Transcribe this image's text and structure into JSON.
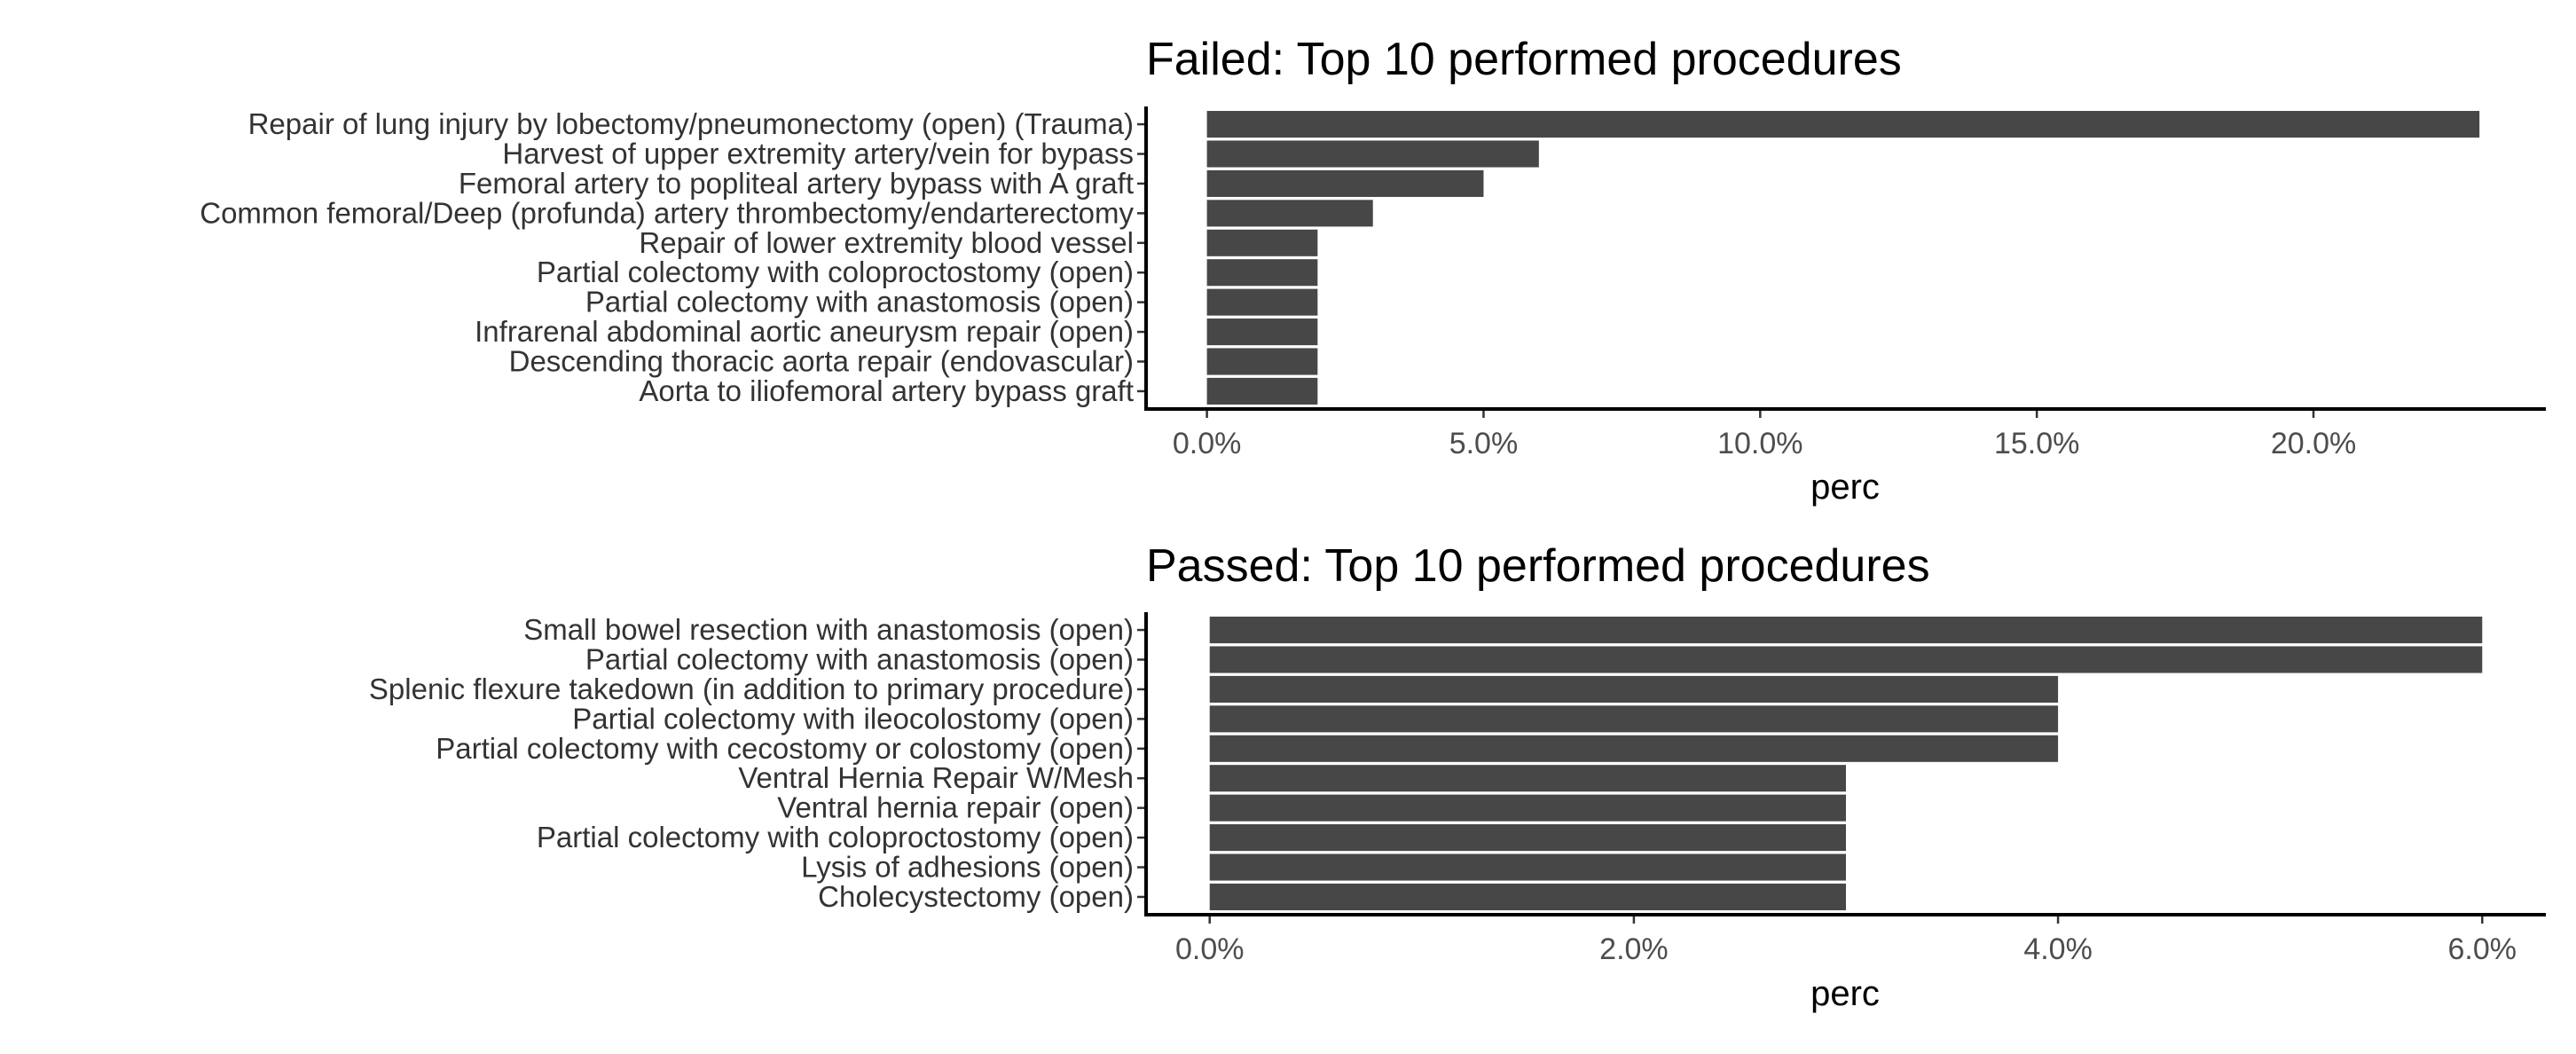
{
  "chart_data": [
    {
      "type": "bar",
      "orientation": "horizontal",
      "title": "Failed: Top 10 performed procedures",
      "xlabel": "perc",
      "ylabel": "",
      "categories": [
        "Repair of lung injury by lobectomy/pneumonectomy (open) (Trauma)",
        "Harvest of upper extremity artery/vein for bypass",
        "Femoral artery to popliteal artery bypass with A graft",
        "Common femoral/Deep (profunda) artery thrombectomy/endarterectomy",
        "Repair of lower extremity blood vessel",
        "Partial colectomy with coloproctostomy (open)",
        "Partial colectomy with anastomosis (open)",
        "Infrarenal abdominal aortic aneurysm repair (open)",
        "Descending thoracic aorta repair (endovascular)",
        "Aorta to iliofemoral artery bypass graft"
      ],
      "values": [
        0.23,
        0.06,
        0.05,
        0.03,
        0.02,
        0.02,
        0.02,
        0.02,
        0.02,
        0.02
      ],
      "xlim": [
        -0.011,
        0.242
      ],
      "xticks": [
        0,
        0.05,
        0.1,
        0.15,
        0.2
      ],
      "xtick_labels": [
        "0.0%",
        "5.0%",
        "10.0%",
        "15.0%",
        "20.0%"
      ],
      "bar_color": "#474747",
      "grid": false
    },
    {
      "type": "bar",
      "orientation": "horizontal",
      "title": "Passed: Top 10 performed procedures",
      "xlabel": "perc",
      "ylabel": "",
      "categories": [
        "Small bowel resection with anastomosis (open)",
        "Partial colectomy with anastomosis (open)",
        "Splenic flexure takedown (in addition to primary procedure)",
        "Partial colectomy with ileocolostomy (open)",
        "Partial colectomy with cecostomy or colostomy (open)",
        "Ventral Hernia Repair W/Mesh",
        "Ventral hernia repair (open)",
        "Partial colectomy with coloproctostomy (open)",
        "Lysis of adhesions (open)",
        "Cholecystectomy (open)"
      ],
      "values": [
        0.06,
        0.06,
        0.04,
        0.04,
        0.04,
        0.03,
        0.03,
        0.03,
        0.03,
        0.03
      ],
      "xlim": [
        -0.003,
        0.063
      ],
      "xticks": [
        0,
        0.02,
        0.04,
        0.06
      ],
      "xtick_labels": [
        "0.0%",
        "2.0%",
        "4.0%",
        "6.0%"
      ],
      "bar_color": "#474747",
      "grid": false
    }
  ]
}
